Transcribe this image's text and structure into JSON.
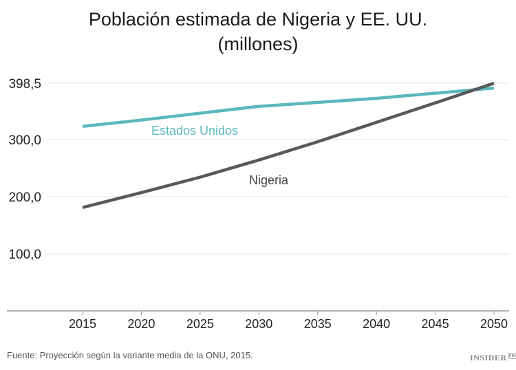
{
  "chart_data": {
    "type": "line",
    "title": "Población estimada de Nigeria y EE. UU.",
    "subtitle": "(millones)",
    "x": [
      2015,
      2020,
      2025,
      2030,
      2035,
      2040,
      2045,
      2050
    ],
    "x_ticks": [
      "2015",
      "2020",
      "2025",
      "2030",
      "2035",
      "2040",
      "2045",
      "2050"
    ],
    "y_ticks": [
      "100,0",
      "200,0",
      "300,0",
      "398,5"
    ],
    "y_tick_values": [
      100,
      200,
      300,
      398.5
    ],
    "ylim": [
      0,
      398.5
    ],
    "grid": "horizontal",
    "series": [
      {
        "name": "Estados Unidos",
        "color": "#5bb8bd",
        "values": [
          323,
          334,
          346,
          358,
          365,
          372,
          381,
          390
        ]
      },
      {
        "name": "Nigeria",
        "color": "#58595b",
        "values": [
          181,
          207,
          234,
          264,
          296,
          330,
          364,
          398.5
        ]
      }
    ]
  },
  "source": "Fuente: Proyección según la variante media de la ONU, 2015.",
  "logo": {
    "text": "INSIDER",
    "badge": "PRO"
  }
}
